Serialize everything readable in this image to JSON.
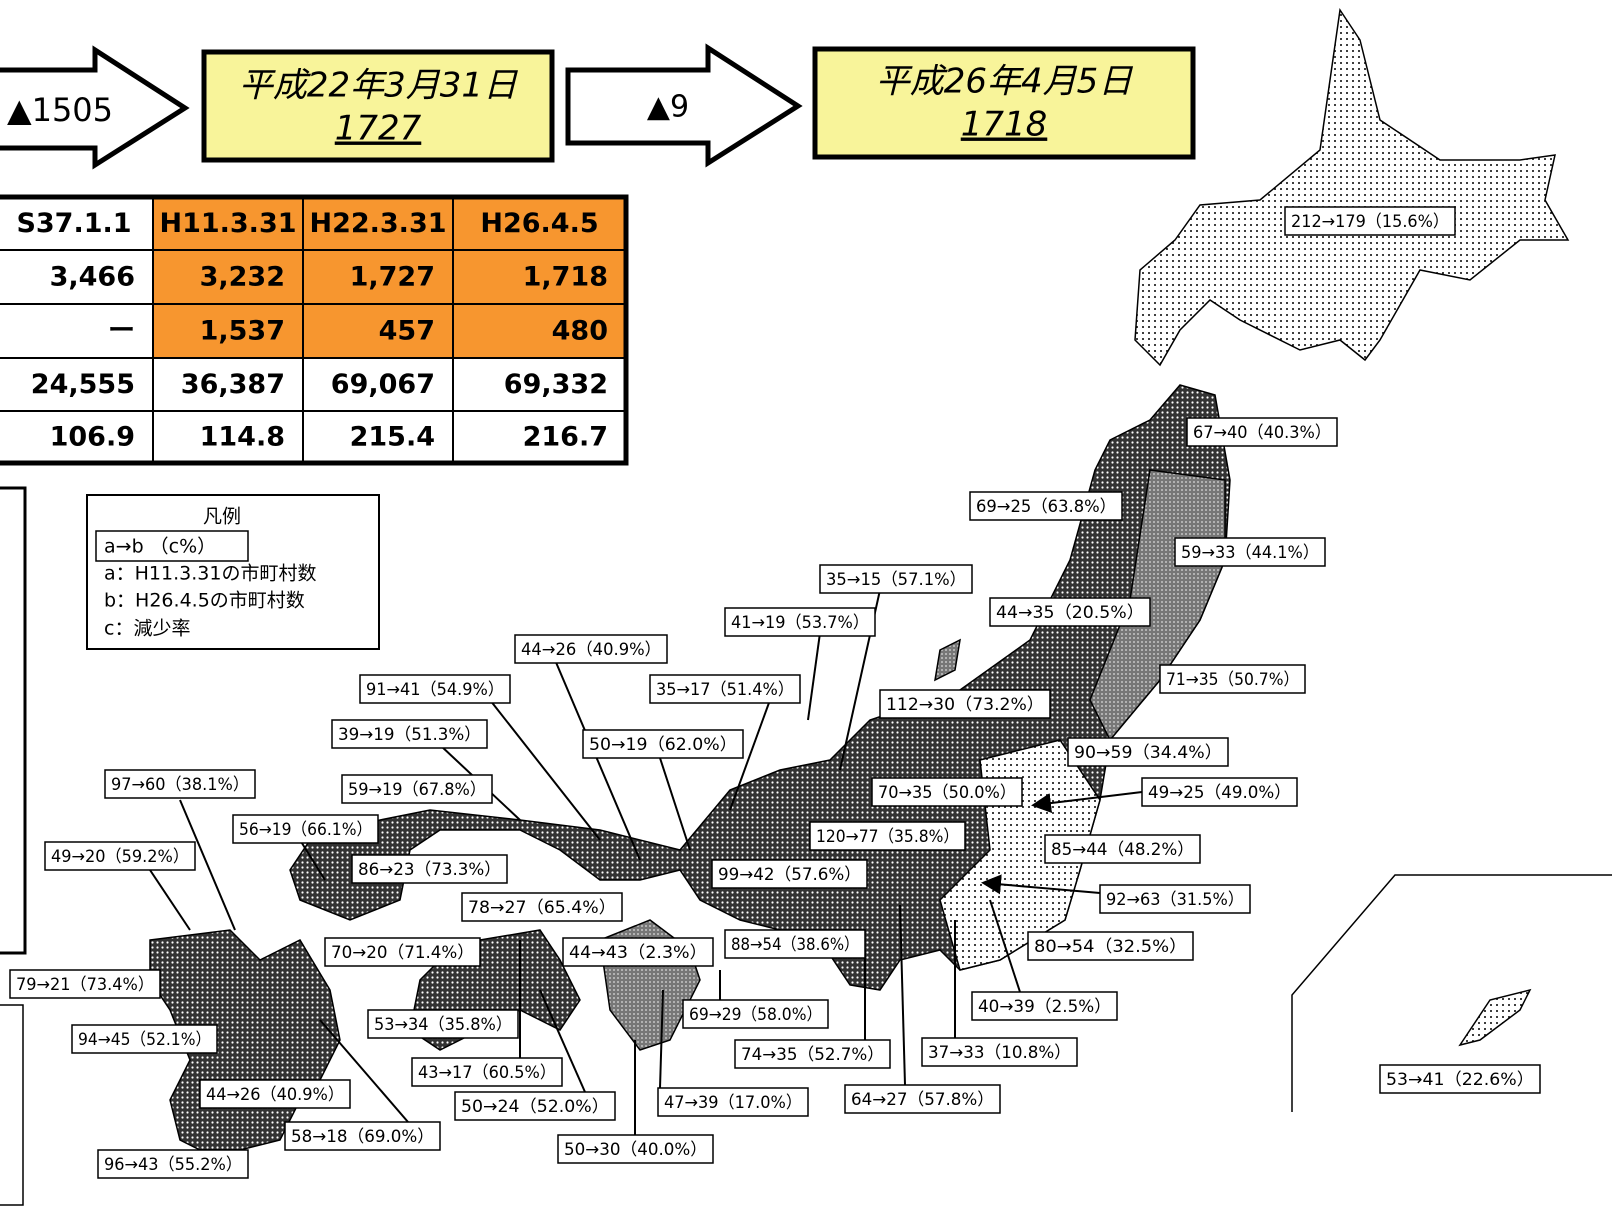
{
  "header": {
    "arrow1": "▲1505",
    "box1": {
      "date": "平成22年3月31日",
      "count": "1727"
    },
    "arrow2": "▲9",
    "box2": {
      "date": "平成26年4月5日",
      "count": "1718"
    }
  },
  "table": {
    "columns": [
      "S37.1.1",
      "H11.3.31",
      "H22.3.31",
      "H26.4.5"
    ],
    "rows": [
      [
        "3,466",
        "3,232",
        "1,727",
        "1,718"
      ],
      [
        "ー",
        "1,537",
        "457",
        "480"
      ],
      [
        "24,555",
        "36,387",
        "69,067",
        "69,332"
      ],
      [
        "106.9",
        "114.8",
        "215.4",
        "216.7"
      ]
    ]
  },
  "legend": {
    "title": "凡例",
    "format": "a→b （c%）",
    "items": [
      "a：H11.3.31の市町村数",
      "b：H26.4.5の市町村数",
      "c：減少率"
    ]
  },
  "labels": [
    "212→179（15.6%）",
    "67→40（40.3%）",
    "69→25（63.8%）",
    "59→33（44.1%）",
    "35→15（57.1%）",
    "44→35（20.5%）",
    "41→19（53.7%）",
    "44→26（40.9%）",
    "35→17（51.4%）",
    "71→35（50.7%）",
    "91→41（54.9%）",
    "112→30（73.2%）",
    "39→19（51.3%）",
    "50→19（62.0%）",
    "90→59（34.4%）",
    "97→60（38.1%）",
    "59→19（67.8%）",
    "70→35（50.0%）",
    "49→25（49.0%）",
    "56→19（66.1%）",
    "120→77（35.8%）",
    "49→20（59.2%）",
    "85→44（48.2%）",
    "86→23（73.3%）",
    "99→42（57.6%）",
    "92→63（31.5%）",
    "78→27（65.4%）",
    "88→54（38.6%）",
    "80→54（32.5%）",
    "70→20（71.4%）",
    "44→43（2.3%）",
    "79→21（73.4%）",
    "40→39（2.5%）",
    "53→34（35.8%）",
    "69→29（58.0%）",
    "94→45（52.1%）",
    "37→33（10.8%）",
    "74→35（52.7%）",
    "43→17（60.5%）",
    "53→41（22.6%）",
    "44→26（40.9%）",
    "64→27（57.8%）",
    "47→39（17.0%）",
    "50→24（52.0%）",
    "58→18（69.0%）",
    "50→30（40.0%）",
    "96→43（55.2%）"
  ]
}
